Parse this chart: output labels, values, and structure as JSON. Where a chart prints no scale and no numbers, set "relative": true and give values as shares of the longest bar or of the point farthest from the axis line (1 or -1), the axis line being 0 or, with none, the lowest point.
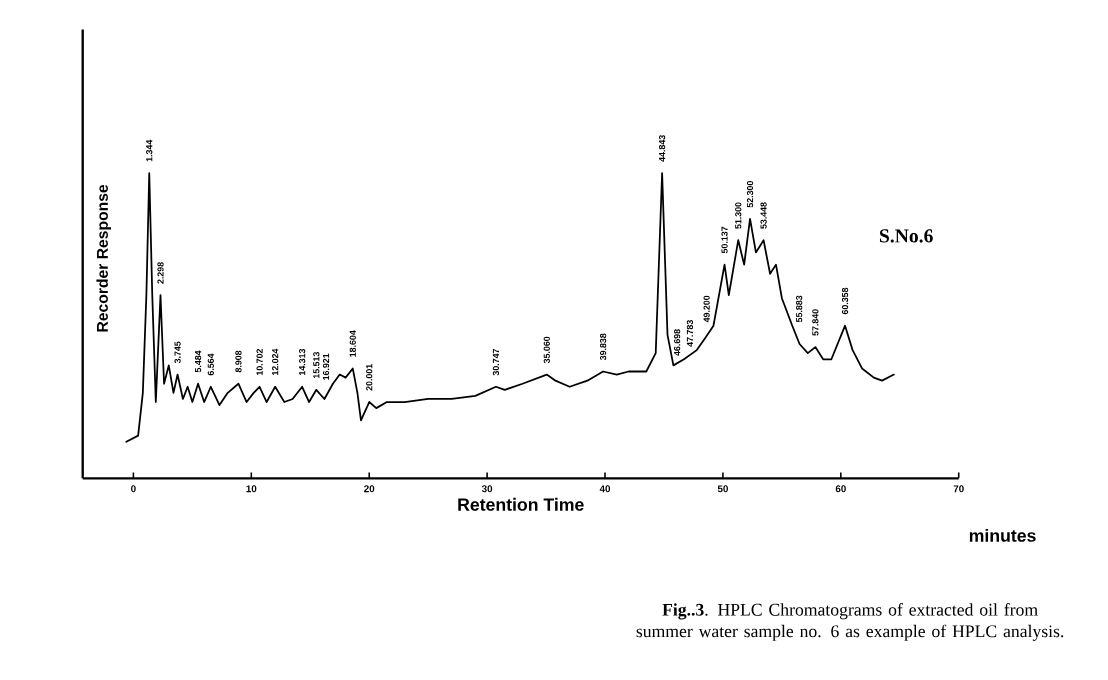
{
  "chart_data": {
    "type": "line",
    "relative": true,
    "xlabel": "Retention Time",
    "ylabel": "Recorder Response",
    "xlim": [
      -4.3,
      70
    ],
    "xticks": [
      0,
      10,
      20,
      30,
      40,
      50,
      60,
      70
    ],
    "series": [
      {
        "color": "#000000",
        "x": [
          -0.6,
          0.4,
          0.8,
          1.1,
          1.344,
          1.6,
          1.9,
          2.298,
          2.6,
          3.0,
          3.4,
          3.745,
          4.2,
          4.6,
          5.0,
          5.484,
          6.0,
          6.564,
          7.3,
          8.0,
          8.908,
          9.6,
          10.2,
          10.702,
          11.3,
          12.024,
          12.8,
          13.5,
          14.313,
          14.9,
          15.513,
          16.2,
          16.921,
          17.5,
          18.0,
          18.604,
          19.0,
          19.3,
          20.001,
          20.6,
          21.5,
          23,
          25,
          27,
          29,
          30.747,
          31.5,
          33,
          35.06,
          35.8,
          37,
          38.5,
          39.838,
          41,
          42,
          43.5,
          44.3,
          44.843,
          45.3,
          45.8,
          46.698,
          47.783,
          48.5,
          49.2,
          50.137,
          50.5,
          51.3,
          51.8,
          52.3,
          52.8,
          53.448,
          54,
          54.5,
          55,
          55.883,
          56.5,
          57.2,
          57.84,
          58.5,
          59.2,
          60.358,
          61,
          61.8,
          62.8,
          63.5,
          64.5
        ],
        "values": [
          0.12,
          0.14,
          0.28,
          0.6,
          1.0,
          0.6,
          0.25,
          0.6,
          0.31,
          0.37,
          0.28,
          0.34,
          0.26,
          0.3,
          0.25,
          0.31,
          0.25,
          0.3,
          0.24,
          0.28,
          0.31,
          0.25,
          0.28,
          0.3,
          0.25,
          0.3,
          0.25,
          0.26,
          0.3,
          0.25,
          0.29,
          0.26,
          0.31,
          0.34,
          0.33,
          0.36,
          0.28,
          0.19,
          0.25,
          0.23,
          0.25,
          0.25,
          0.26,
          0.26,
          0.27,
          0.3,
          0.29,
          0.31,
          0.34,
          0.32,
          0.3,
          0.32,
          0.35,
          0.34,
          0.35,
          0.35,
          0.41,
          1.0,
          0.47,
          0.37,
          0.39,
          0.42,
          0.46,
          0.5,
          0.7,
          0.6,
          0.78,
          0.7,
          0.85,
          0.74,
          0.78,
          0.67,
          0.7,
          0.59,
          0.5,
          0.44,
          0.41,
          0.43,
          0.39,
          0.39,
          0.5,
          0.42,
          0.36,
          0.33,
          0.32,
          0.34
        ]
      }
    ],
    "annotations": [
      "S.No.6",
      "minutes",
      "**Fig..3**. HPLC Chromatograms of extracted oil from summer water sample no. 6 as example of HPLC analysis.",
      {
        "text": "1.344",
        "x": 1.344,
        "y": 1.0
      },
      {
        "text": "2.298",
        "x": 2.298,
        "y": 0.6
      },
      {
        "text": "3.745",
        "x": 3.745,
        "y": 0.34
      },
      {
        "text": "5.484",
        "x": 5.484,
        "y": 0.31
      },
      {
        "text": "6.564",
        "x": 6.564,
        "y": 0.3
      },
      {
        "text": "8.908",
        "x": 8.908,
        "y": 0.31
      },
      {
        "text": "10.702",
        "x": 10.702,
        "y": 0.3
      },
      {
        "text": "12.024",
        "x": 12.024,
        "y": 0.3
      },
      {
        "text": "14.313",
        "x": 14.313,
        "y": 0.3
      },
      {
        "text": "15.513",
        "x": 15.513,
        "y": 0.29
      },
      {
        "text": "16.921",
        "x": 16.921,
        "y": 0.31
      },
      {
        "text": "18.604",
        "x": 18.604,
        "y": 0.36
      },
      {
        "text": "20.001",
        "x": 20.001,
        "y": 0.25
      },
      {
        "text": "30.747",
        "x": 30.747,
        "y": 0.3
      },
      {
        "text": "35.060",
        "x": 35.06,
        "y": 0.34
      },
      {
        "text": "39.838",
        "x": 39.838,
        "y": 0.35
      },
      {
        "text": "44.843",
        "x": 44.843,
        "y": 1.0
      },
      {
        "text": "46.698",
        "x": 46.698,
        "y": 0.39
      },
      {
        "text": "47.783",
        "x": 47.783,
        "y": 0.42
      },
      {
        "text": "49.200",
        "x": 49.2,
        "y": 0.5
      },
      {
        "text": "50.137",
        "x": 50.137,
        "y": 0.7
      },
      {
        "text": "51.300",
        "x": 51.3,
        "y": 0.78
      },
      {
        "text": "52.300",
        "x": 52.3,
        "y": 0.85
      },
      {
        "text": "53.448",
        "x": 53.448,
        "y": 0.78
      },
      {
        "text": "55.883",
        "x": 55.883,
        "y": 0.5
      },
      {
        "text": "57.840",
        "x": 57.84,
        "y": 0.43
      },
      {
        "text": "60.358",
        "x": 60.358,
        "y": 0.5
      }
    ]
  }
}
